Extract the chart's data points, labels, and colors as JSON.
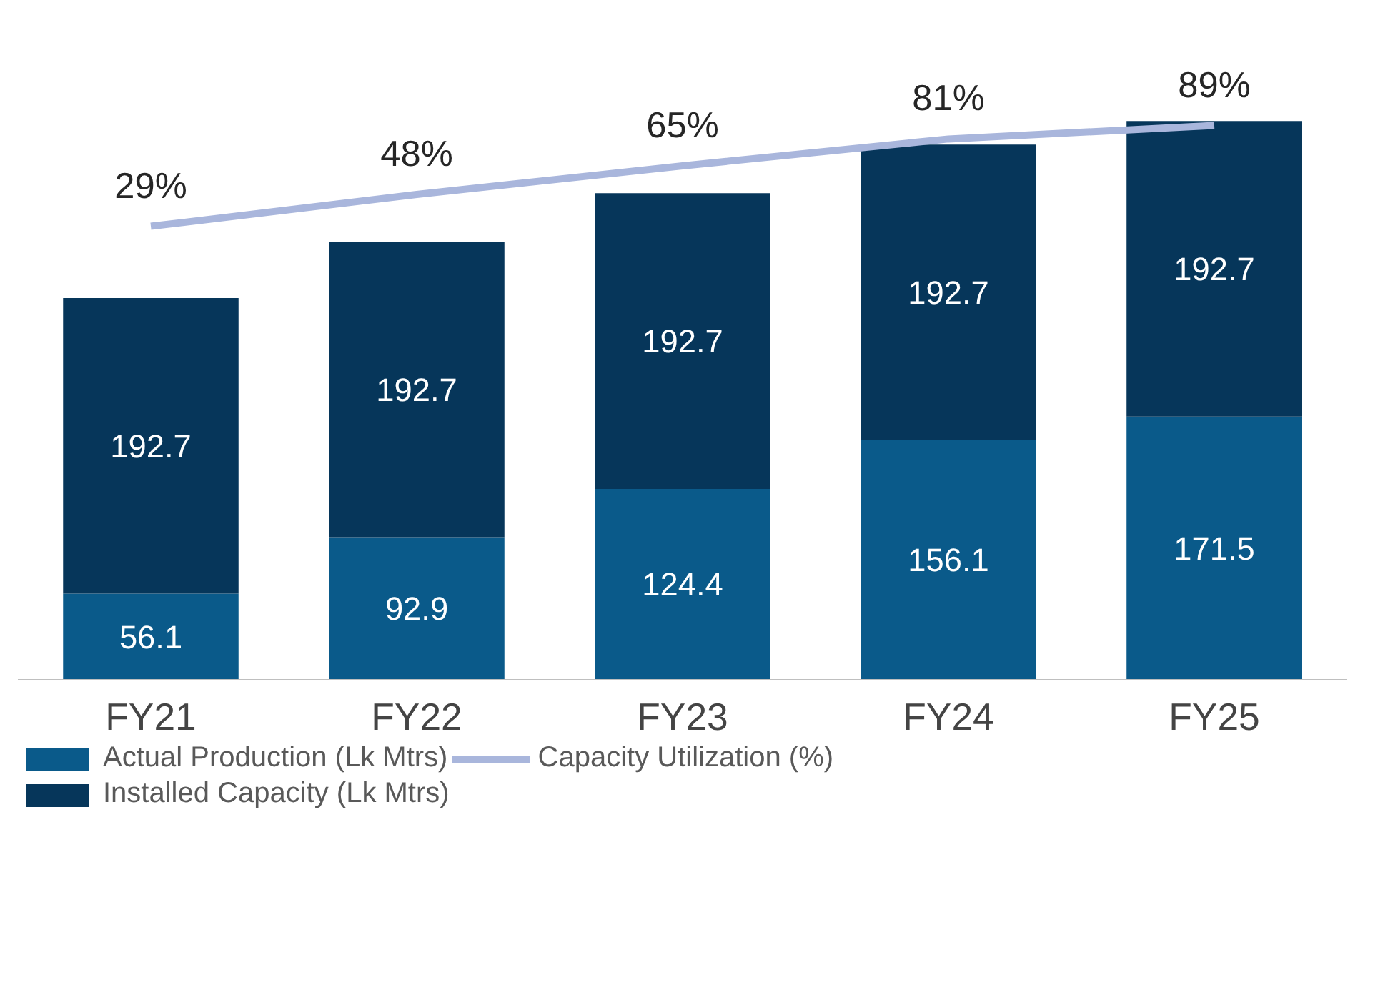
{
  "chart_data": {
    "type": "bar",
    "stacked": true,
    "categories": [
      "FY21",
      "FY22",
      "FY23",
      "FY24",
      "FY25"
    ],
    "series": [
      {
        "name": "Actual Production (Lk Mtrs)",
        "color": "#0a5a8a",
        "values": [
          56.1,
          92.9,
          124.4,
          156.1,
          171.5
        ]
      },
      {
        "name": "Installed Capacity (Lk Mtrs)",
        "color": "#06365a",
        "values": [
          192.7,
          192.7,
          192.7,
          192.7,
          192.7
        ]
      },
      {
        "name": "Capacity Utilization (%)",
        "color": "#a9b6dc",
        "type": "line",
        "axis": "y2",
        "values": [
          29,
          48,
          65,
          81,
          89
        ],
        "value_labels": [
          "29%",
          "48%",
          "65%",
          "81%",
          "89%"
        ]
      }
    ],
    "tick_labels": "x",
    "data_labels": true,
    "grid": false,
    "legend": "bottom",
    "marker": "none"
  }
}
